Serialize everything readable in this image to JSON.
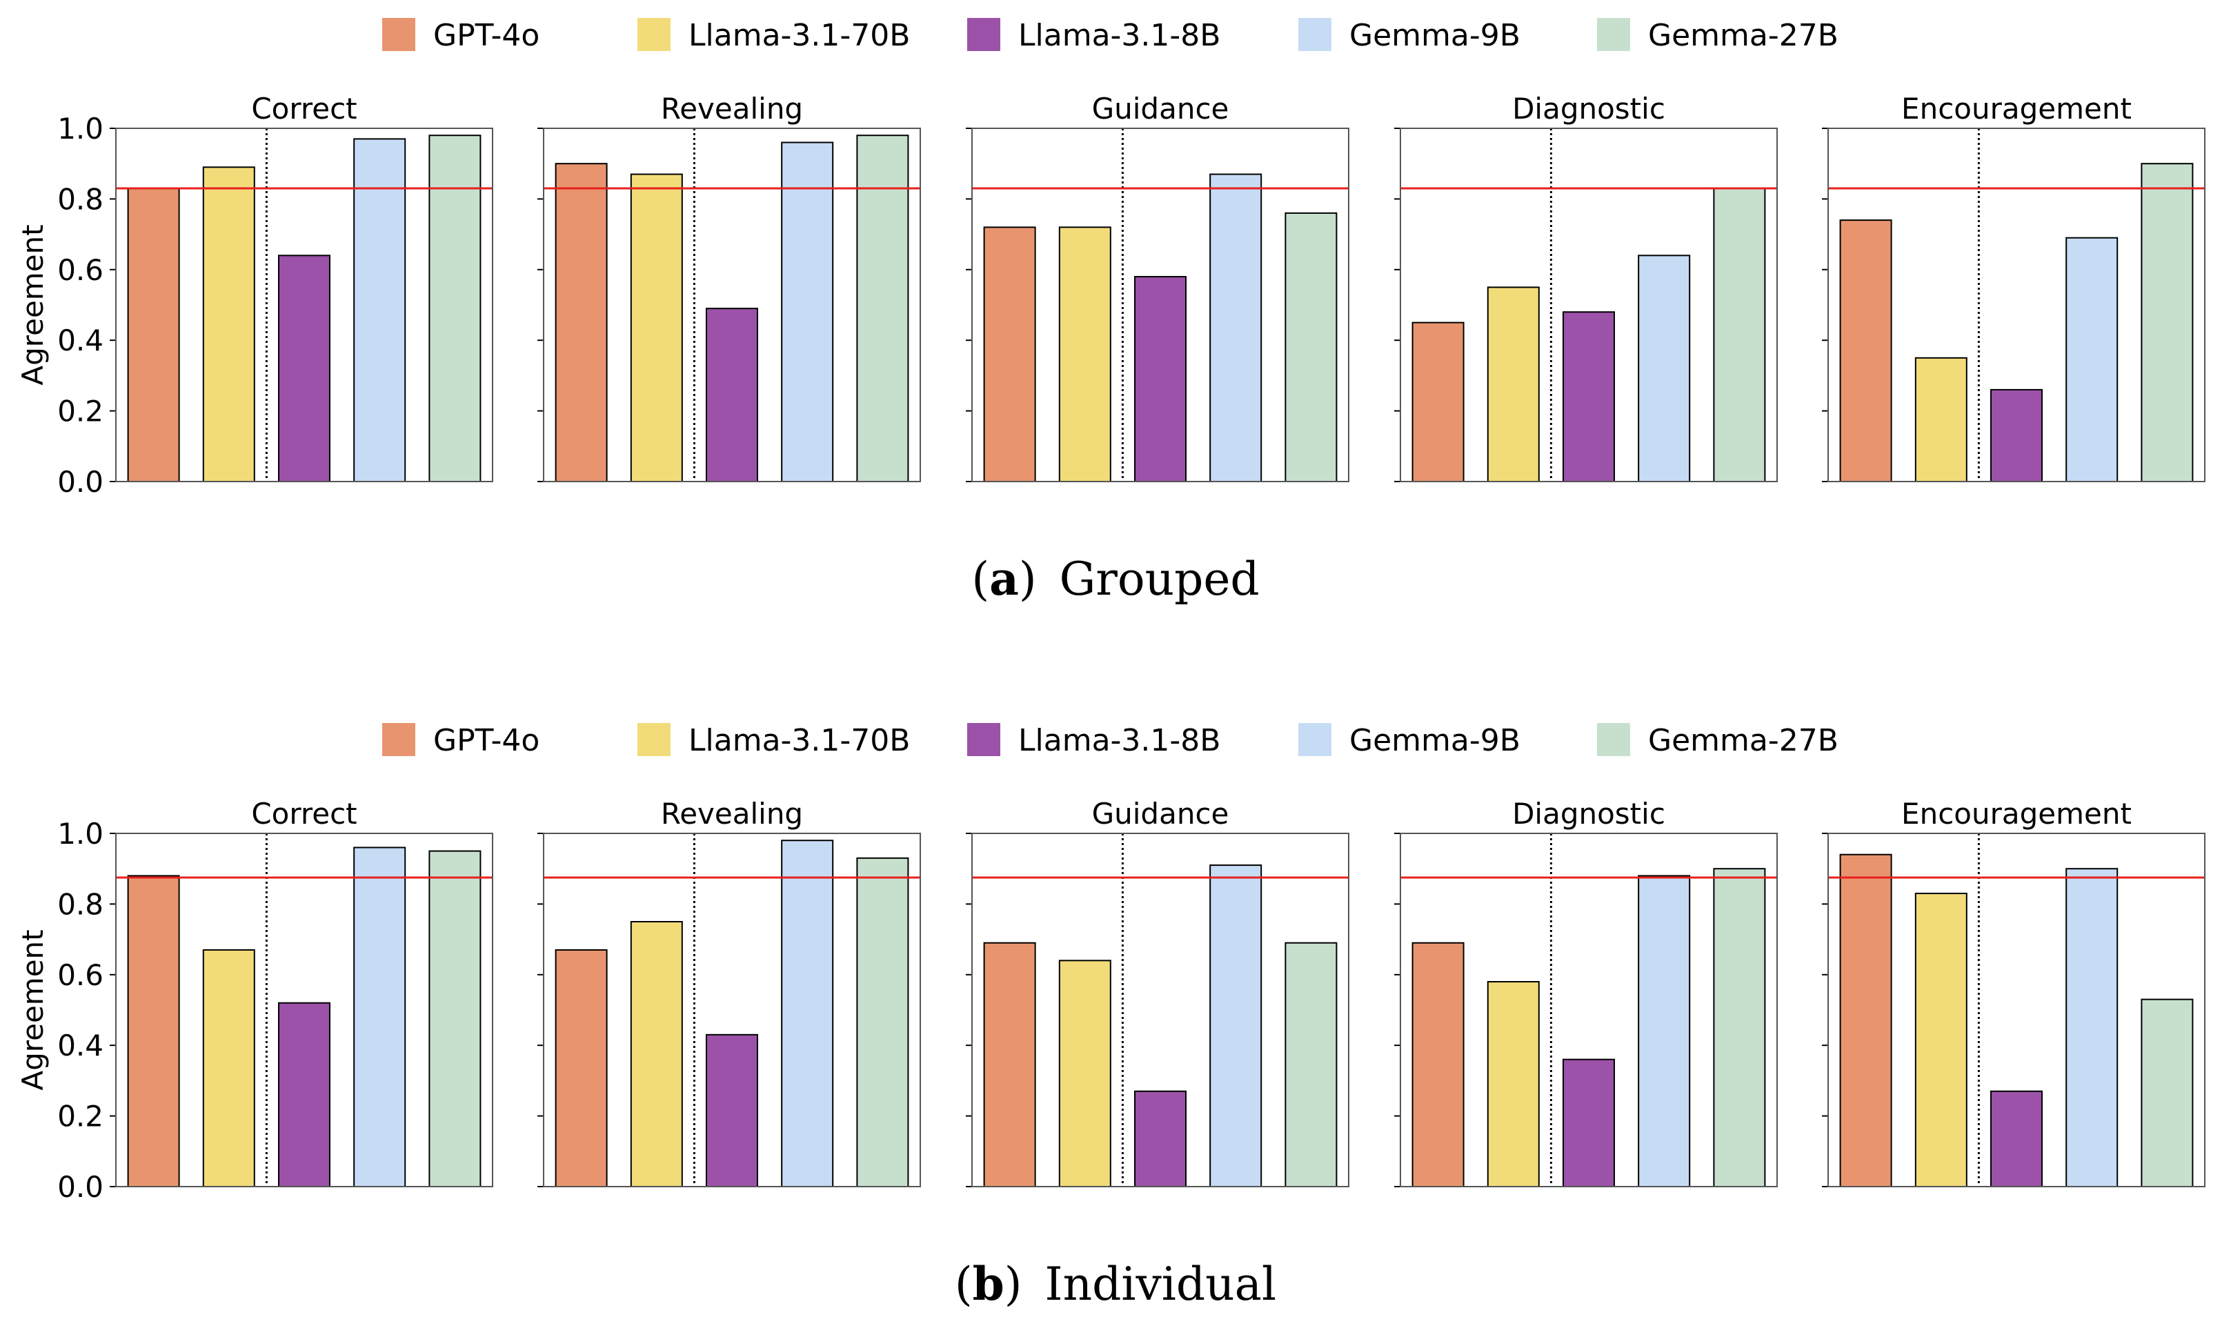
{
  "chart_data": [
    {
      "type": "bar",
      "caption": {
        "letter": "a",
        "text": "Grouped"
      },
      "ylabel": "Agreement",
      "ylim": [
        0,
        1.0
      ],
      "yticks": [
        "0.0",
        "0.2",
        "0.4",
        "0.6",
        "0.8",
        "1.0"
      ],
      "reference_line": 0.83,
      "legend": [
        "GPT-4o",
        "Llama-3.1-70B",
        "Llama-3.1-8B",
        "Gemma-9B",
        "Gemma-27B"
      ],
      "colors": [
        "#e8956f",
        "#f2dc7a",
        "#9b52a8",
        "#c6dcf5",
        "#c7e0cd"
      ],
      "panels": [
        {
          "title": "Correct",
          "values": [
            0.83,
            0.89,
            0.64,
            0.97,
            0.98
          ]
        },
        {
          "title": "Revealing",
          "values": [
            0.9,
            0.87,
            0.49,
            0.96,
            0.98
          ]
        },
        {
          "title": "Guidance",
          "values": [
            0.72,
            0.72,
            0.58,
            0.87,
            0.76
          ]
        },
        {
          "title": "Diagnostic",
          "values": [
            0.45,
            0.55,
            0.48,
            0.64,
            0.83
          ]
        },
        {
          "title": "Encouragement",
          "values": [
            0.74,
            0.35,
            0.26,
            0.69,
            0.9
          ]
        }
      ]
    },
    {
      "type": "bar",
      "caption": {
        "letter": "b",
        "text": "Individual"
      },
      "ylabel": "Agreement",
      "ylim": [
        0,
        1.0
      ],
      "yticks": [
        "0.0",
        "0.2",
        "0.4",
        "0.6",
        "0.8",
        "1.0"
      ],
      "reference_line": 0.875,
      "legend": [
        "GPT-4o",
        "Llama-3.1-70B",
        "Llama-3.1-8B",
        "Gemma-9B",
        "Gemma-27B"
      ],
      "colors": [
        "#e8956f",
        "#f2dc7a",
        "#9b52a8",
        "#c6dcf5",
        "#c7e0cd"
      ],
      "panels": [
        {
          "title": "Correct",
          "values": [
            0.88,
            0.67,
            0.52,
            0.96,
            0.95
          ]
        },
        {
          "title": "Revealing",
          "values": [
            0.67,
            0.75,
            0.43,
            0.98,
            0.93
          ]
        },
        {
          "title": "Guidance",
          "values": [
            0.69,
            0.64,
            0.27,
            0.91,
            0.69
          ]
        },
        {
          "title": "Diagnostic",
          "values": [
            0.69,
            0.58,
            0.36,
            0.88,
            0.9
          ]
        },
        {
          "title": "Encouragement",
          "values": [
            0.94,
            0.83,
            0.27,
            0.9,
            0.53
          ]
        }
      ]
    }
  ]
}
